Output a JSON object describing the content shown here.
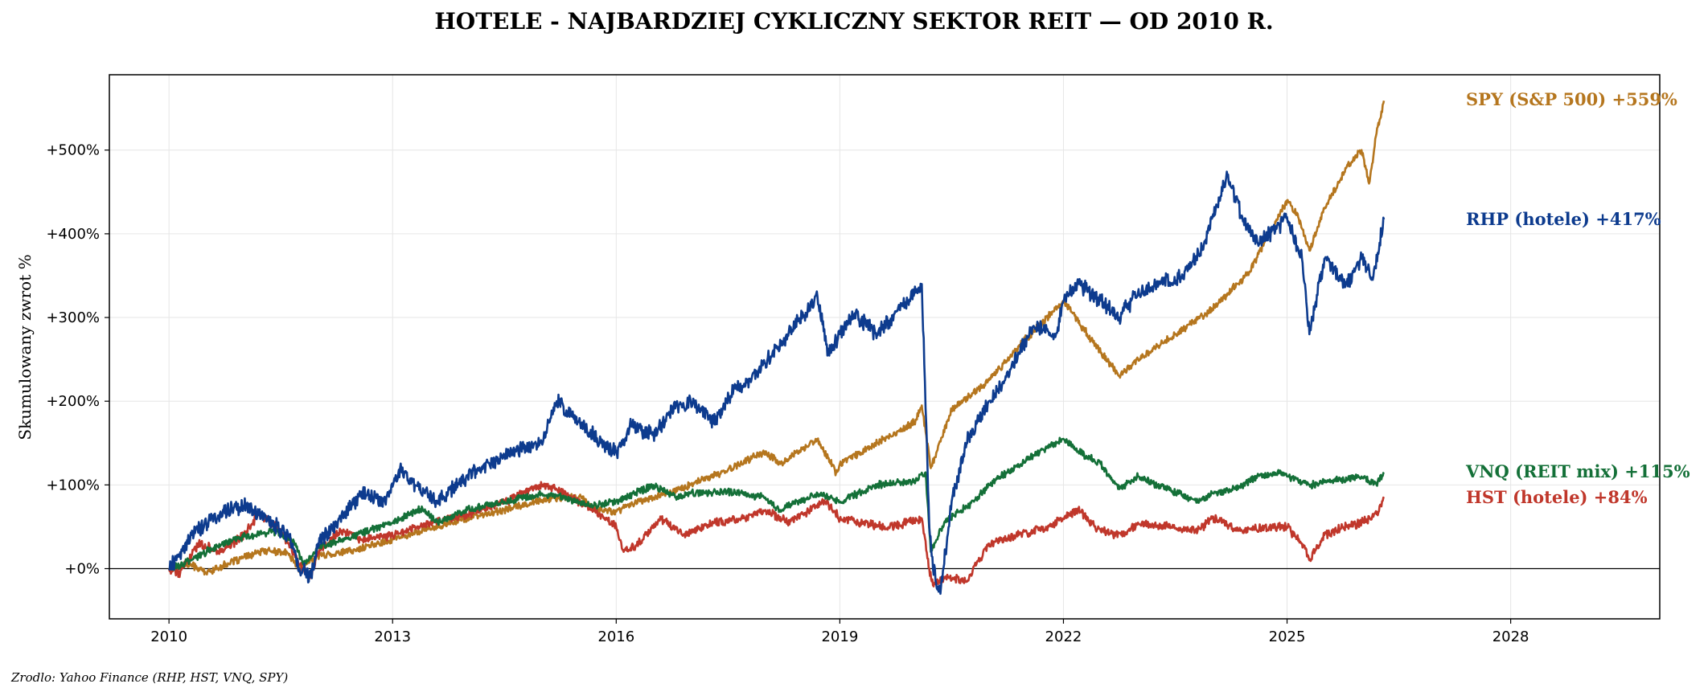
{
  "chart_data": {
    "type": "line",
    "title": "HOTELE - NAJBARDZIEJ CYKLICZNY SEKTOR REIT — OD 2010 R.",
    "ylabel": "Skumulowany zwrot %",
    "xlabel": "",
    "source": "Zrodlo: Yahoo Finance (RHP, HST, VNQ, SPY)",
    "xlim": [
      2009.2,
      2030.0
    ],
    "ylim": [
      -60,
      590
    ],
    "x_ticks": [
      2010,
      2013,
      2016,
      2019,
      2022,
      2025,
      2028
    ],
    "x_tick_labels": [
      "2010",
      "2013",
      "2016",
      "2019",
      "2022",
      "2025",
      "2028"
    ],
    "y_ticks": [
      0,
      100,
      200,
      300,
      400,
      500
    ],
    "y_tick_labels": [
      "+0%",
      "+100%",
      "+200%",
      "+300%",
      "+400%",
      "+500%"
    ],
    "grid": true,
    "zero_line": true,
    "series": [
      {
        "name": "SPY (S&P 500)",
        "label": "SPY (S&P 500)  +559%",
        "color": "#b5761e",
        "x": [
          2010.0,
          2010.3,
          2010.5,
          2010.9,
          2011.3,
          2011.6,
          2011.75,
          2012.0,
          2012.5,
          2013.0,
          2013.5,
          2014.0,
          2014.5,
          2015.0,
          2015.5,
          2015.75,
          2016.0,
          2016.2,
          2016.5,
          2017.0,
          2017.5,
          2018.0,
          2018.2,
          2018.7,
          2018.95,
          2019.0,
          2019.5,
          2020.0,
          2020.1,
          2020.22,
          2020.5,
          2021.0,
          2021.5,
          2022.0,
          2022.4,
          2022.75,
          2023.0,
          2023.5,
          2024.0,
          2024.5,
          2025.0,
          2025.15,
          2025.3,
          2025.5,
          2025.8,
          2026.0,
          2026.1,
          2026.2,
          2026.3
        ],
        "y": [
          0,
          5,
          -5,
          10,
          22,
          18,
          0,
          15,
          22,
          35,
          48,
          60,
          70,
          82,
          86,
          70,
          68,
          78,
          85,
          100,
          118,
          140,
          125,
          155,
          115,
          125,
          150,
          175,
          195,
          120,
          190,
          225,
          275,
          320,
          270,
          230,
          250,
          280,
          310,
          355,
          440,
          420,
          380,
          430,
          480,
          500,
          460,
          520,
          559
        ]
      },
      {
        "name": "RHP (hotele)",
        "label": "RHP (hotele)  +417%",
        "color": "#0d3b8e",
        "x": [
          2010.0,
          2010.1,
          2010.3,
          2010.5,
          2010.8,
          2011.0,
          2011.3,
          2011.6,
          2011.75,
          2011.9,
          2012.0,
          2012.3,
          2012.6,
          2012.9,
          2013.1,
          2013.3,
          2013.6,
          2014.0,
          2014.5,
          2015.0,
          2015.2,
          2015.5,
          2015.8,
          2016.0,
          2016.2,
          2016.5,
          2016.8,
          2017.0,
          2017.3,
          2017.6,
          2017.8,
          2018.0,
          2018.3,
          2018.7,
          2018.85,
          2019.0,
          2019.2,
          2019.5,
          2019.8,
          2020.0,
          2020.1,
          2020.2,
          2020.25,
          2020.35,
          2020.5,
          2020.7,
          2021.0,
          2021.3,
          2021.6,
          2021.9,
          2022.0,
          2022.2,
          2022.5,
          2022.75,
          2023.0,
          2023.3,
          2023.6,
          2023.9,
          2024.0,
          2024.2,
          2024.4,
          2024.6,
          2024.9,
          2025.0,
          2025.2,
          2025.3,
          2025.5,
          2025.8,
          2026.0,
          2026.15,
          2026.3
        ],
        "y": [
          0,
          10,
          40,
          55,
          70,
          75,
          60,
          40,
          0,
          -10,
          30,
          60,
          90,
          80,
          120,
          100,
          80,
          110,
          135,
          150,
          200,
          175,
          150,
          140,
          170,
          160,
          195,
          200,
          175,
          215,
          225,
          245,
          280,
          325,
          255,
          280,
          305,
          280,
          310,
          330,
          340,
          50,
          0,
          -30,
          80,
          150,
          200,
          240,
          290,
          280,
          320,
          340,
          320,
          300,
          330,
          340,
          350,
          390,
          420,
          470,
          420,
          390,
          410,
          420,
          370,
          280,
          370,
          340,
          370,
          345,
          417
        ]
      },
      {
        "name": "VNQ (REIT mix)",
        "label": "VNQ (REIT mix)  +115%",
        "color": "#147038",
        "x": [
          2010.0,
          2010.3,
          2010.6,
          2011.0,
          2011.4,
          2011.7,
          2011.8,
          2012.0,
          2012.5,
          2013.0,
          2013.4,
          2013.6,
          2014.0,
          2014.5,
          2015.0,
          2015.3,
          2015.7,
          2016.0,
          2016.5,
          2016.8,
          2017.0,
          2017.5,
          2018.0,
          2018.2,
          2018.7,
          2019.0,
          2019.5,
          2020.0,
          2020.15,
          2020.22,
          2020.4,
          2020.8,
          2021.0,
          2021.5,
          2022.0,
          2022.2,
          2022.5,
          2022.75,
          2023.0,
          2023.4,
          2023.8,
          2024.0,
          2024.3,
          2024.6,
          2024.9,
          2025.0,
          2025.3,
          2025.6,
          2026.0,
          2026.2,
          2026.3
        ],
        "y": [
          0,
          10,
          25,
          38,
          45,
          30,
          5,
          25,
          40,
          55,
          72,
          55,
          70,
          80,
          90,
          85,
          75,
          80,
          100,
          85,
          90,
          92,
          85,
          70,
          90,
          80,
          100,
          105,
          115,
          20,
          55,
          80,
          100,
          130,
          155,
          140,
          125,
          95,
          110,
          95,
          80,
          90,
          95,
          110,
          115,
          110,
          100,
          105,
          110,
          100,
          115
        ]
      },
      {
        "name": "HST (hotele)",
        "label": "HST (hotele)  +84%",
        "color": "#c0372b",
        "x": [
          2010.0,
          2010.15,
          2010.4,
          2010.7,
          2011.0,
          2011.2,
          2011.5,
          2011.6,
          2011.8,
          2011.9,
          2012.0,
          2012.3,
          2012.6,
          2013.0,
          2013.5,
          2014.0,
          2014.5,
          2015.0,
          2015.2,
          2015.6,
          2016.0,
          2016.1,
          2016.3,
          2016.6,
          2016.9,
          2017.3,
          2017.7,
          2018.0,
          2018.3,
          2018.8,
          2019.0,
          2019.3,
          2019.6,
          2019.9,
          2020.1,
          2020.2,
          2020.25,
          2020.4,
          2020.7,
          2021.0,
          2021.4,
          2021.8,
          2022.0,
          2022.2,
          2022.5,
          2022.8,
          2023.0,
          2023.4,
          2023.8,
          2024.0,
          2024.4,
          2024.8,
          2025.0,
          2025.2,
          2025.3,
          2025.5,
          2025.8,
          2026.0,
          2026.2,
          2026.3
        ],
        "y": [
          0,
          -5,
          30,
          20,
          40,
          65,
          45,
          30,
          0,
          -10,
          20,
          45,
          35,
          40,
          55,
          65,
          80,
          100,
          95,
          75,
          50,
          20,
          30,
          60,
          40,
          55,
          60,
          70,
          55,
          80,
          60,
          55,
          50,
          55,
          60,
          0,
          -20,
          -10,
          -15,
          30,
          40,
          50,
          60,
          70,
          45,
          40,
          55,
          50,
          45,
          60,
          45,
          50,
          50,
          30,
          10,
          40,
          50,
          55,
          65,
          84
        ]
      }
    ]
  }
}
